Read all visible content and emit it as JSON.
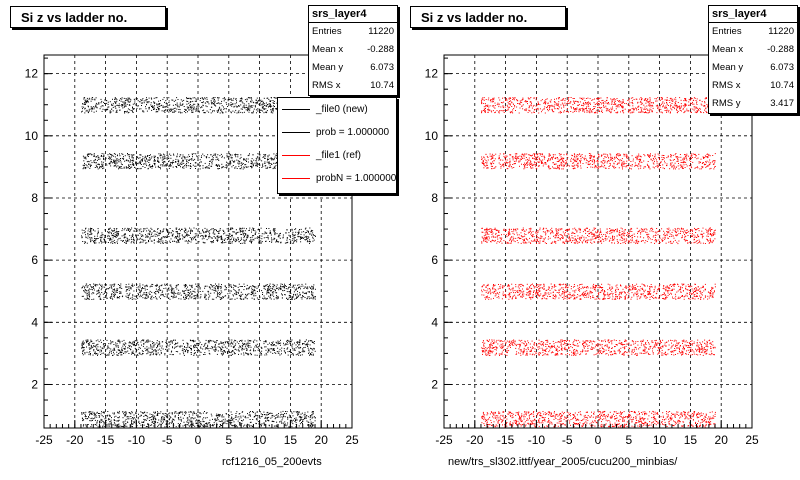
{
  "chart_data": [
    {
      "type": "scatter",
      "title": "Si z vs ladder no.",
      "xlabel": "rcf1216_05_200evts",
      "ylabel": "",
      "xlim": [
        -25,
        25
      ],
      "ylim": [
        0.6,
        12.6
      ],
      "xticks": [
        "-25",
        "-20",
        "-15",
        "-10",
        "-5",
        "0",
        "5",
        "10",
        "15",
        "20",
        "25"
      ],
      "yticks": [
        "2",
        "4",
        "6",
        "8",
        "10",
        "12"
      ],
      "grid": true,
      "marker_color": "#000000",
      "bands_y": [
        0.9,
        3.2,
        5.0,
        6.8,
        9.2,
        11.0
      ],
      "band_x_range": [
        -19,
        19
      ],
      "stats": {
        "name": "srs_layer4",
        "rows": [
          {
            "label": "Entries",
            "value": "11220"
          },
          {
            "label": "Mean x",
            "value": "-0.288"
          },
          {
            "label": "Mean y",
            "value": "6.073"
          },
          {
            "label": "RMS x",
            "value": "10.74"
          }
        ]
      },
      "legend": [
        {
          "label": "_file0 (new)",
          "color": "#000000"
        },
        {
          "label": "prob = 1.000000",
          "color": "#000000"
        },
        {
          "label": "_file1 (ref)",
          "color": "#ff0000"
        },
        {
          "label": "probN = 1.000000",
          "color": "#ff0000"
        }
      ]
    },
    {
      "type": "scatter",
      "title": "Si z vs ladder no.",
      "xlabel": "new/trs_sl302.ittf/year_2005/cucu200_minbias/",
      "ylabel": "",
      "xlim": [
        -25,
        25
      ],
      "ylim": [
        0.6,
        12.6
      ],
      "xticks": [
        "-25",
        "-20",
        "-15",
        "-10",
        "-5",
        "0",
        "5",
        "10",
        "15",
        "20",
        "25"
      ],
      "yticks": [
        "2",
        "4",
        "6",
        "8",
        "10",
        "12"
      ],
      "grid": true,
      "marker_color": "#ff0000",
      "bands_y": [
        0.9,
        3.2,
        5.0,
        6.8,
        9.2,
        11.0
      ],
      "band_x_range": [
        -19,
        19
      ],
      "stats": {
        "name": "srs_layer4",
        "rows": [
          {
            "label": "Entries",
            "value": "11220"
          },
          {
            "label": "Mean x",
            "value": "-0.288"
          },
          {
            "label": "Mean y",
            "value": "6.073"
          },
          {
            "label": "RMS x",
            "value": "10.74"
          },
          {
            "label": "RMS y",
            "value": "3.417"
          }
        ]
      }
    }
  ]
}
